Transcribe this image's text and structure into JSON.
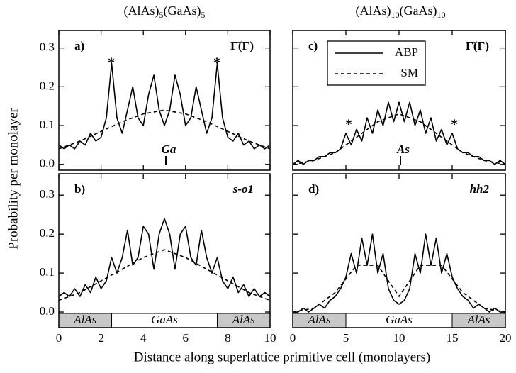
{
  "xlabel": "Distance along superlattice primitive cell (monolayers)",
  "ylabel": "Probability per monolayer",
  "chart_data": [
    {
      "type": "line",
      "title_parts": [
        "(AlAs)",
        "5",
        "(GaAs)",
        "5"
      ],
      "label": "a)",
      "state": "Γ̄(Γ)",
      "atom": "Ga",
      "markers": [
        "*",
        "*"
      ],
      "xlim": [
        0,
        10
      ],
      "ylim": [
        -0.015,
        0.345
      ],
      "yticks": [
        {
          "value": 0,
          "label": "0.0"
        },
        0.1,
        0.2,
        0.3
      ],
      "series": [
        {
          "dash": false,
          "color": "#000000",
          "x": [
            0,
            0.25,
            0.5,
            0.75,
            1,
            1.25,
            1.5,
            1.75,
            2,
            2.25,
            2.5,
            2.75,
            3,
            3.25,
            3.5,
            3.75,
            4,
            4.25,
            4.5,
            4.75,
            5,
            5.25,
            5.5,
            5.75,
            6,
            6.25,
            6.5,
            6.75,
            7,
            7.25,
            7.5,
            7.75,
            8,
            8.25,
            8.5,
            8.75,
            9,
            9.25,
            9.5,
            9.75,
            10
          ],
          "values": [
            0.05,
            0.04,
            0.05,
            0.04,
            0.06,
            0.05,
            0.08,
            0.06,
            0.07,
            0.12,
            0.26,
            0.12,
            0.08,
            0.14,
            0.2,
            0.12,
            0.1,
            0.18,
            0.23,
            0.14,
            0.1,
            0.14,
            0.23,
            0.18,
            0.1,
            0.12,
            0.2,
            0.14,
            0.08,
            0.12,
            0.26,
            0.12,
            0.07,
            0.06,
            0.08,
            0.05,
            0.06,
            0.04,
            0.05,
            0.04,
            0.05
          ]
        },
        {
          "dash": true,
          "color": "#000000",
          "x": [
            0,
            1,
            2,
            3,
            4,
            5,
            6,
            7,
            8,
            9,
            10
          ],
          "values": [
            0.04,
            0.06,
            0.085,
            0.11,
            0.13,
            0.14,
            0.13,
            0.11,
            0.085,
            0.06,
            0.04
          ]
        }
      ]
    },
    {
      "type": "line",
      "label": "b)",
      "state": "s-o1",
      "xlim": [
        0,
        10
      ],
      "ylim": [
        -0.04,
        0.355
      ],
      "yticks": [
        {
          "value": 0,
          "label": "0.0"
        },
        0.1,
        0.2,
        0.3
      ],
      "xticks": [
        0,
        2,
        4,
        6,
        8,
        10
      ],
      "layers": [
        {
          "label": "AlAs",
          "from": 0,
          "to": 2.5
        },
        {
          "label": "GaAs",
          "from": 2.5,
          "to": 7.5
        },
        {
          "label": "AlAs",
          "from": 7.5,
          "to": 10
        }
      ],
      "series": [
        {
          "dash": false,
          "color": "#000000",
          "x": [
            0,
            0.25,
            0.5,
            0.75,
            1,
            1.25,
            1.5,
            1.75,
            2,
            2.25,
            2.5,
            2.75,
            3,
            3.25,
            3.5,
            3.75,
            4,
            4.25,
            4.5,
            4.75,
            5,
            5.25,
            5.5,
            5.75,
            6,
            6.25,
            6.5,
            6.75,
            7,
            7.25,
            7.5,
            7.75,
            8,
            8.25,
            8.5,
            8.75,
            9,
            9.25,
            9.5,
            9.75,
            10
          ],
          "values": [
            0.04,
            0.05,
            0.04,
            0.06,
            0.04,
            0.07,
            0.05,
            0.09,
            0.06,
            0.08,
            0.14,
            0.1,
            0.14,
            0.21,
            0.12,
            0.14,
            0.22,
            0.2,
            0.11,
            0.2,
            0.24,
            0.2,
            0.11,
            0.2,
            0.22,
            0.14,
            0.12,
            0.21,
            0.14,
            0.1,
            0.14,
            0.08,
            0.06,
            0.09,
            0.05,
            0.07,
            0.04,
            0.06,
            0.04,
            0.05,
            0.04
          ]
        },
        {
          "dash": true,
          "color": "#000000",
          "x": [
            0,
            1,
            2,
            3,
            4,
            5,
            6,
            7,
            8,
            9,
            10
          ],
          "values": [
            0.03,
            0.05,
            0.08,
            0.11,
            0.14,
            0.16,
            0.14,
            0.11,
            0.08,
            0.05,
            0.03
          ]
        }
      ]
    },
    {
      "type": "line",
      "title_parts": [
        "(AlAs)",
        "10",
        "(GaAs)",
        "10"
      ],
      "label": "c)",
      "state": "Γ̄(Γ)",
      "atom": "As",
      "markers": [
        "*",
        "*"
      ],
      "xlim": [
        0,
        20
      ],
      "ylim": [
        -0.015,
        0.345
      ],
      "series": [
        {
          "name": "ABP",
          "dash": false,
          "color": "#000000",
          "x": [
            0,
            0.5,
            1,
            1.5,
            2,
            2.5,
            3,
            3.5,
            4,
            4.5,
            5,
            5.5,
            6,
            6.5,
            7,
            7.5,
            8,
            8.5,
            9,
            9.5,
            10,
            10.5,
            11,
            11.5,
            12,
            12.5,
            13,
            13.5,
            14,
            14.5,
            15,
            15.5,
            16,
            16.5,
            17,
            17.5,
            18,
            18.5,
            19,
            19.5,
            20
          ],
          "values": [
            0,
            0.01,
            0,
            0.01,
            0.01,
            0.02,
            0.02,
            0.03,
            0.03,
            0.04,
            0.08,
            0.05,
            0.09,
            0.06,
            0.12,
            0.08,
            0.14,
            0.1,
            0.16,
            0.11,
            0.16,
            0.11,
            0.16,
            0.1,
            0.14,
            0.08,
            0.12,
            0.06,
            0.09,
            0.05,
            0.08,
            0.04,
            0.03,
            0.03,
            0.02,
            0.02,
            0.01,
            0.01,
            0,
            0.01,
            0
          ]
        },
        {
          "name": "SM",
          "dash": true,
          "color": "#000000",
          "x": [
            0,
            2,
            4,
            6,
            8,
            10,
            12,
            14,
            16,
            18,
            20
          ],
          "values": [
            0,
            0.01,
            0.03,
            0.07,
            0.11,
            0.13,
            0.11,
            0.07,
            0.03,
            0.01,
            0
          ]
        }
      ]
    },
    {
      "type": "line",
      "label": "d)",
      "state": "hh2",
      "xlim": [
        0,
        20
      ],
      "ylim": [
        -0.04,
        0.355
      ],
      "xticks": [
        0,
        5,
        10,
        15,
        20
      ],
      "layers": [
        {
          "label": "AlAs",
          "from": 0,
          "to": 5
        },
        {
          "label": "GaAs",
          "from": 5,
          "to": 15
        },
        {
          "label": "AlAs",
          "from": 15,
          "to": 20
        }
      ],
      "series": [
        {
          "dash": false,
          "color": "#000000",
          "x": [
            0,
            0.5,
            1,
            1.5,
            2,
            2.5,
            3,
            3.5,
            4,
            4.5,
            5,
            5.5,
            6,
            6.5,
            7,
            7.5,
            8,
            8.5,
            9,
            9.5,
            10,
            10.5,
            11,
            11.5,
            12,
            12.5,
            13,
            13.5,
            14,
            14.5,
            15,
            15.5,
            16,
            16.5,
            17,
            17.5,
            18,
            18.5,
            19,
            19.5,
            20
          ],
          "values": [
            0,
            0,
            0.01,
            0,
            0.01,
            0.02,
            0.01,
            0.03,
            0.04,
            0.06,
            0.09,
            0.15,
            0.1,
            0.19,
            0.12,
            0.2,
            0.1,
            0.15,
            0.06,
            0.03,
            0.02,
            0.03,
            0.06,
            0.15,
            0.1,
            0.2,
            0.12,
            0.19,
            0.1,
            0.15,
            0.09,
            0.06,
            0.04,
            0.03,
            0.01,
            0.02,
            0.01,
            0,
            0.01,
            0,
            0
          ]
        },
        {
          "dash": true,
          "color": "#000000",
          "x": [
            0,
            2,
            4,
            6,
            8,
            10,
            12,
            14,
            16,
            18,
            20
          ],
          "values": [
            0,
            0.01,
            0.05,
            0.12,
            0.12,
            0.04,
            0.12,
            0.12,
            0.05,
            0.01,
            0
          ]
        }
      ]
    }
  ]
}
